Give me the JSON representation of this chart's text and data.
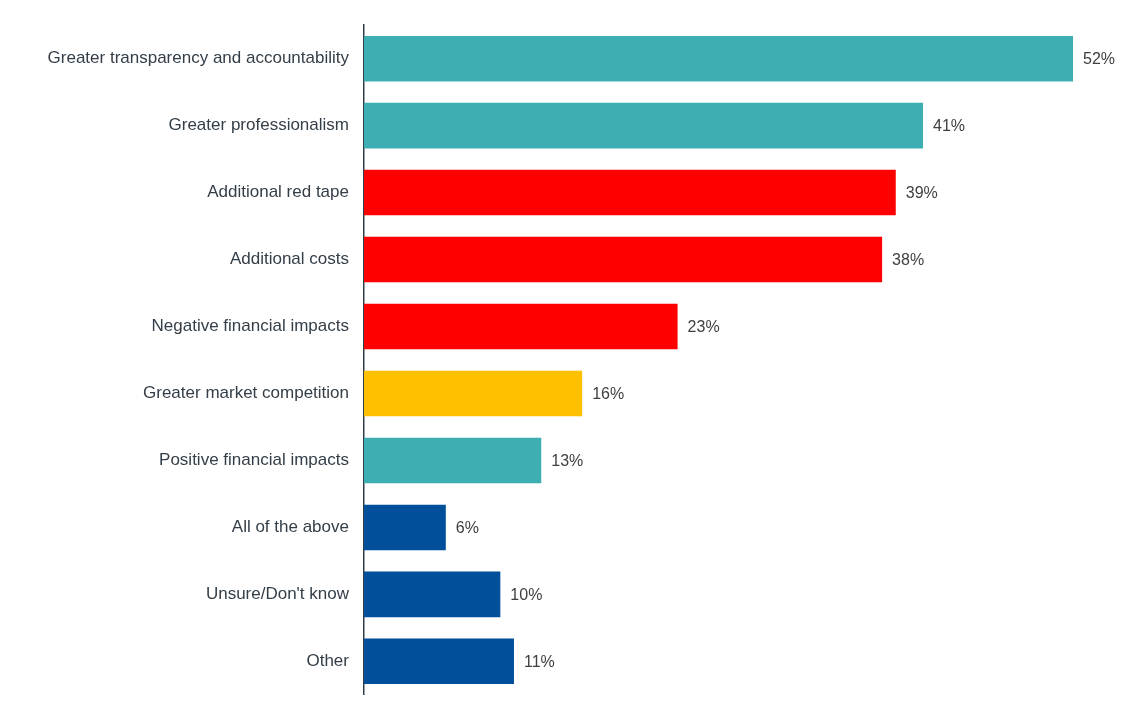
{
  "chart_data": {
    "type": "bar",
    "orientation": "horizontal",
    "tick_labels": "y",
    "categories": [
      "Greater transparency and accountability",
      "Greater professionalism",
      "Additional red tape",
      "Additional costs",
      "Negative financial impacts",
      "Greater market competition",
      "Positive financial impacts",
      "All of the above",
      "Unsure/Don't know",
      "Other"
    ],
    "values": [
      52,
      41,
      39,
      38,
      23,
      16,
      13,
      6,
      10,
      11
    ],
    "value_labels": [
      "52%",
      "41%",
      "39%",
      "38%",
      "23%",
      "16%",
      "13%",
      "6%",
      "10%",
      "11%"
    ],
    "colors": [
      "#3dafb2",
      "#3dafb2",
      "#ff0000",
      "#ff0000",
      "#ff0000",
      "#ffc000",
      "#3dafb2",
      "#004f9a",
      "#004f9a",
      "#004f9a"
    ]
  }
}
